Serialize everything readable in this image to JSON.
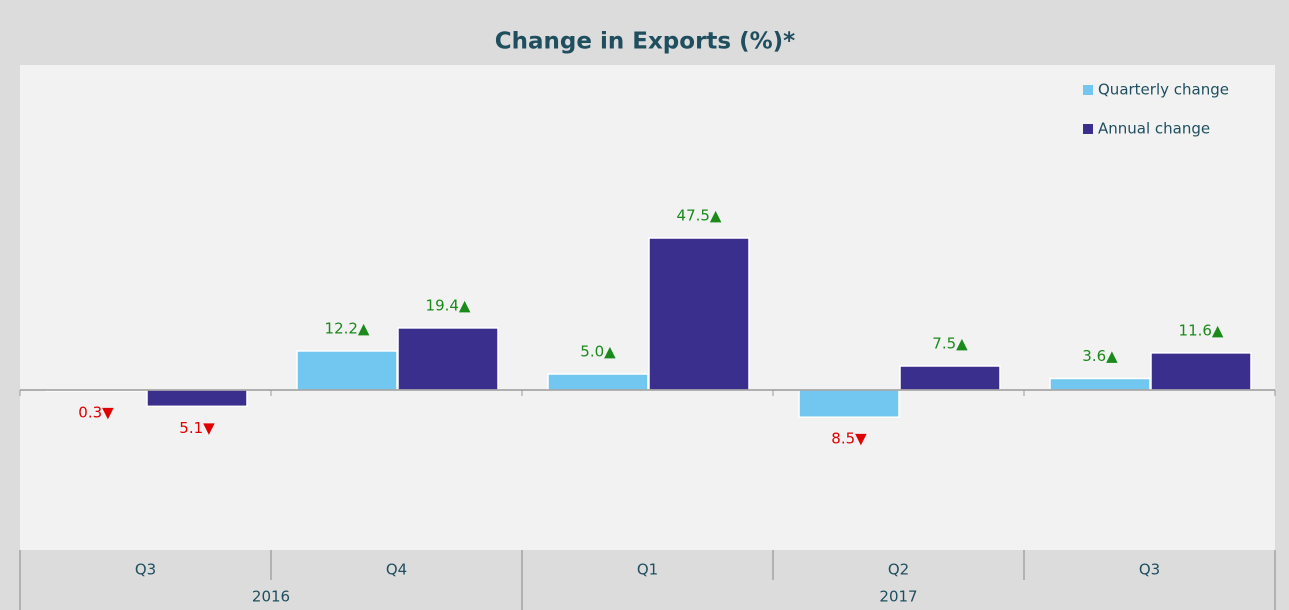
{
  "chart_data": {
    "type": "bar",
    "title": "Change in Exports (%)*",
    "categories": [
      "Q3",
      "Q4",
      "Q1",
      "Q2",
      "Q3"
    ],
    "year_groups": [
      {
        "label": "2016",
        "count": 2
      },
      {
        "label": "2017",
        "count": 3
      }
    ],
    "series": [
      {
        "name": "Quarterly change",
        "color": "#72c7f0",
        "values": [
          -0.3,
          12.2,
          5.0,
          -8.5,
          3.6
        ],
        "value_labels": [
          "0.3▼",
          "12.2▲",
          "5.0▲",
          "8.5▼",
          "3.6▲"
        ]
      },
      {
        "name": "Annual change",
        "color": "#3b2f8e",
        "values": [
          -5.1,
          19.4,
          47.5,
          7.5,
          11.6
        ],
        "value_labels": [
          "5.1▼",
          "19.4▲",
          "47.5▲",
          "7.5▲",
          "11.6▲"
        ]
      }
    ],
    "ylim": [
      -50,
      100
    ],
    "up_color": "#1a8a1a",
    "down_color": "#e00000",
    "legend": "top-right",
    "grid": false
  }
}
